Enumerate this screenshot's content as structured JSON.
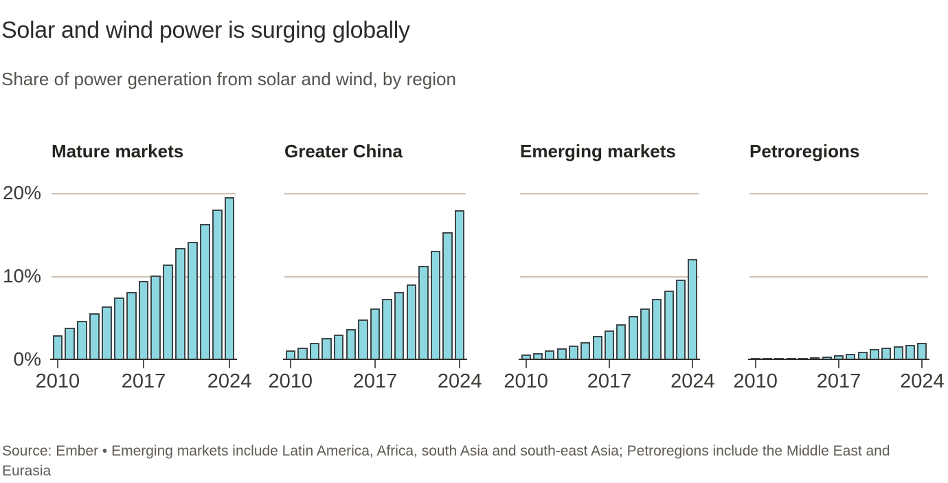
{
  "header": {
    "title": "Solar and wind power is surging globally",
    "subtitle": "Share of power generation from solar and wind, by region"
  },
  "chart_data": {
    "type": "bar",
    "layout": "small-multiples-4-panels",
    "x": [
      2010,
      2011,
      2012,
      2013,
      2014,
      2015,
      2016,
      2017,
      2018,
      2019,
      2020,
      2021,
      2022,
      2023,
      2024
    ],
    "x_tick_years": [
      2010,
      2017,
      2024
    ],
    "x_tick_labels": [
      "2010",
      "2017",
      "2024"
    ],
    "y_tick_labels": [
      "20%",
      "10%",
      "0%"
    ],
    "y_tick_values": [
      20,
      10,
      0
    ],
    "grid_values": [
      20,
      10
    ],
    "ylim": [
      0,
      20
    ],
    "unit": "%",
    "series": [
      {
        "name": "Mature markets",
        "values": [
          2.9,
          3.8,
          4.6,
          5.5,
          6.4,
          7.4,
          8.1,
          9.4,
          10.1,
          11.4,
          13.4,
          14.1,
          16.3,
          18.0,
          19.5
        ]
      },
      {
        "name": "Greater China",
        "values": [
          1.1,
          1.4,
          2.0,
          2.6,
          3.0,
          3.6,
          4.8,
          6.1,
          7.3,
          8.1,
          9.0,
          11.2,
          13.1,
          15.3,
          17.9
        ]
      },
      {
        "name": "Emerging markets",
        "values": [
          0.6,
          0.75,
          1.05,
          1.3,
          1.65,
          2.1,
          2.8,
          3.5,
          4.2,
          5.2,
          6.1,
          7.3,
          8.3,
          9.6,
          12.1
        ]
      },
      {
        "name": "Petroregions",
        "values": [
          0.05,
          0.1,
          0.12,
          0.15,
          0.2,
          0.25,
          0.35,
          0.5,
          0.65,
          0.95,
          1.2,
          1.4,
          1.6,
          1.75,
          1.95
        ]
      }
    ],
    "colors": {
      "bar_fill": "#8dd7e0",
      "bar_border": "#3f464a",
      "gridline": "#cfc1b1",
      "baseline": "#33312d",
      "axis_text": "#3c3a36"
    },
    "legend": "none",
    "grid": "horizontal-only"
  },
  "footer": {
    "text": "Source: Ember • Emerging markets include Latin America, Africa, south Asia and south-east Asia; Petroregions include the Middle East and Eurasia"
  }
}
